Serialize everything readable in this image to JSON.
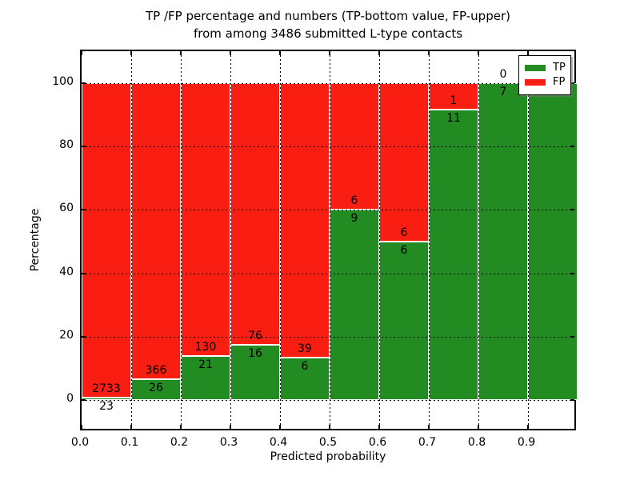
{
  "title": {
    "line1": "TP /FP percentage and numbers (TP-bottom value, FP-upper)",
    "line2": "from among 3486 submitted L-type contacts"
  },
  "colors": {
    "tp_green": "#228b22",
    "fp_red": "#fa1d12",
    "axis_black": "#000000",
    "background": "#ffffff"
  },
  "legend": {
    "items": [
      {
        "label": "TP",
        "color": "#228b22"
      },
      {
        "label": "FP",
        "color": "#fa1d12"
      }
    ],
    "position": "upper right"
  },
  "chart_data": {
    "type": "bar",
    "stacked": true,
    "normalized_to_percent": true,
    "title": "TP /FP percentage and numbers (TP-bottom value, FP-upper)\nfrom among 3486 submitted L-type contacts",
    "xlabel": "Predicted probability",
    "ylabel": "Percentage",
    "total_contacts": 3486,
    "categories": [
      "0.0-0.1",
      "0.1-0.2",
      "0.2-0.3",
      "0.3-0.4",
      "0.4-0.5",
      "0.5-0.6",
      "0.6-0.7",
      "0.7-0.8",
      "0.8-0.9",
      "0.9-1.0"
    ],
    "bin_left_edges": [
      0.0,
      0.1,
      0.2,
      0.3,
      0.4,
      0.5,
      0.6,
      0.7,
      0.8,
      0.9
    ],
    "series": [
      {
        "name": "TP",
        "color": "#228b22",
        "counts": [
          23,
          26,
          21,
          16,
          6,
          9,
          6,
          11,
          7,
          4
        ]
      },
      {
        "name": "FP",
        "color": "#fa1d12",
        "counts": [
          2733,
          366,
          130,
          76,
          39,
          6,
          6,
          1,
          0,
          0
        ]
      }
    ],
    "tp_percent": [
      0.83,
      6.63,
      13.91,
      17.39,
      13.33,
      60.0,
      50.0,
      91.67,
      100.0,
      100.0
    ],
    "annotation_note": "TP count below segment boundary, FP count above segment boundary",
    "xlim": [
      0.0,
      1.0
    ],
    "ylim": [
      -10,
      110
    ],
    "yticks": [
      0,
      20,
      40,
      60,
      80,
      100
    ],
    "xticks": [
      "0.0",
      "0.1",
      "0.2",
      "0.3",
      "0.4",
      "0.5",
      "0.6",
      "0.7",
      "0.8",
      "0.9"
    ],
    "grid": true,
    "grid_style": "black dotted, drawn over bars",
    "bar_edge_color": "#ffffff",
    "legend_position": "upper right"
  }
}
